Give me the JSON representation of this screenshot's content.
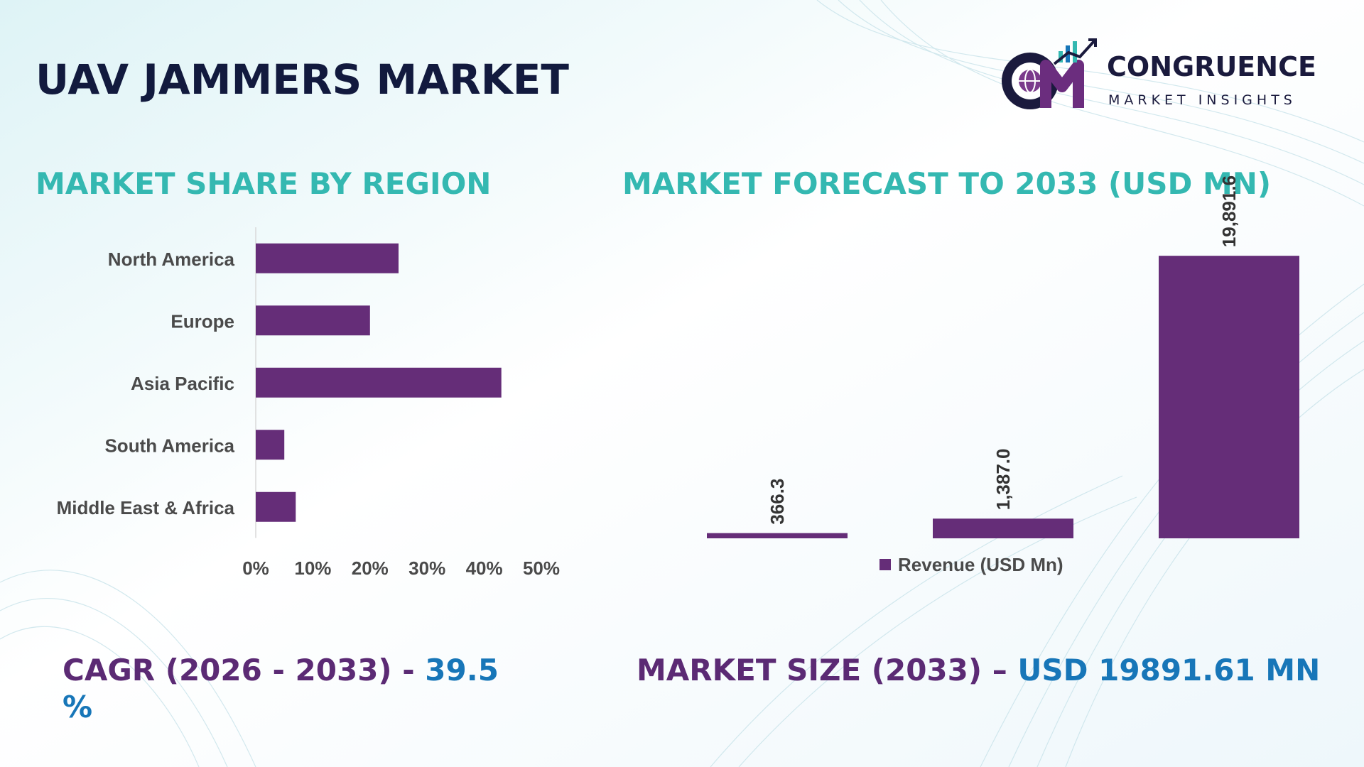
{
  "title": "UAV JAMMERS MARKET",
  "logo": {
    "brand": "CONGRUENCE",
    "tagline": "MARKET INSIGHTS"
  },
  "colors": {
    "bar": "#652d78",
    "section_title": "#34b8b1",
    "stat_label": "#5b2a74",
    "stat_value": "#1776b8"
  },
  "chart_data": [
    {
      "type": "bar",
      "orientation": "horizontal",
      "title": "MARKET SHARE BY REGION",
      "categories": [
        "North America",
        "Europe",
        "Asia Pacific",
        "South America",
        "Middle East & Africa"
      ],
      "values": [
        25,
        20,
        43,
        5,
        7
      ],
      "value_unit": "%",
      "xlim": [
        0,
        50
      ],
      "x_ticks": [
        "0%",
        "10%",
        "20%",
        "30%",
        "40%",
        "50%"
      ],
      "grid": false,
      "legend": "none"
    },
    {
      "type": "bar",
      "title": "MARKET FORECAST TO 2033 (USD MN)",
      "series": [
        {
          "name": "Revenue (USD Mn)",
          "values": [
            366.3,
            1387.0,
            19891.6
          ],
          "labels": [
            "366.3",
            "1,387.0",
            "19,891.6"
          ]
        }
      ],
      "ylim": [
        0,
        22000
      ],
      "grid": false,
      "legend": "bottom"
    }
  ],
  "stats": {
    "cagr_label": "CAGR (2026 - 2033) - ",
    "cagr_value": "39.5 %",
    "size_label": "MARKET SIZE (2033) – ",
    "size_value": "USD 19891.61 MN"
  }
}
